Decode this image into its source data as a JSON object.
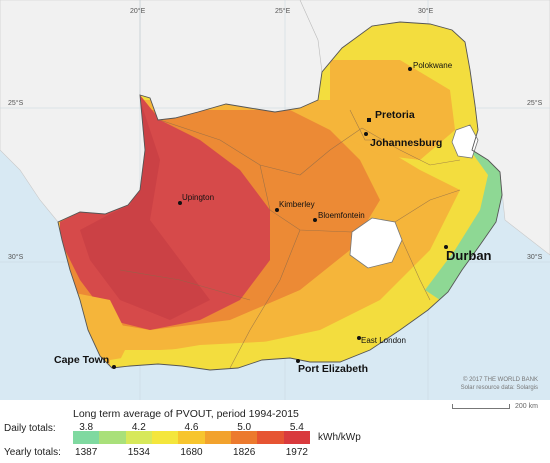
{
  "map": {
    "graticule": {
      "lon_labels": [
        "20°E",
        "25°E",
        "30°E"
      ],
      "lat_labels": [
        "25°S",
        "30°S"
      ],
      "lat_labels_right": [
        "25°S",
        "30°S"
      ]
    },
    "cities": [
      {
        "name": "Polokwane",
        "size": "small"
      },
      {
        "name": "Pretoria",
        "size": "medium"
      },
      {
        "name": "Johannesburg",
        "size": "medium"
      },
      {
        "name": "Upington",
        "size": "small"
      },
      {
        "name": "Kimberley",
        "size": "small"
      },
      {
        "name": "Bloemfontein",
        "size": "small"
      },
      {
        "name": "Durban",
        "size": "large"
      },
      {
        "name": "East London",
        "size": "small"
      },
      {
        "name": "Port Elizabeth",
        "size": "medium"
      },
      {
        "name": "Cape Town",
        "size": "medium"
      }
    ],
    "credit_line1": "© 2017 THE WORLD BANK",
    "credit_line2": "Solar resource data: Solargis",
    "scale_label": "200 km"
  },
  "legend": {
    "title": "Long term average of PVOUT, period 1994-2015",
    "daily_label": "Daily totals:",
    "yearly_label": "Yearly totals:",
    "daily_ticks": [
      "3.8",
      "4.2",
      "4.6",
      "5.0",
      "5.4"
    ],
    "yearly_ticks": [
      "1387",
      "1534",
      "1680",
      "1826",
      "1972"
    ],
    "unit": "kWh/kWp",
    "colors": [
      "#7fd9a0",
      "#a9e07a",
      "#d7e85a",
      "#f4e63c",
      "#f7c52e",
      "#f2a22d",
      "#ec7a2e",
      "#e65432",
      "#d93a3d"
    ]
  },
  "colors": {
    "sea": "#d8e9f3",
    "land_outside": "#f1f1f1",
    "hot": "#d64a4a",
    "warm": "#ec8a35",
    "mild": "#f5b53a",
    "cool": "#f3dd3e",
    "coast_green": "#8ed894"
  }
}
